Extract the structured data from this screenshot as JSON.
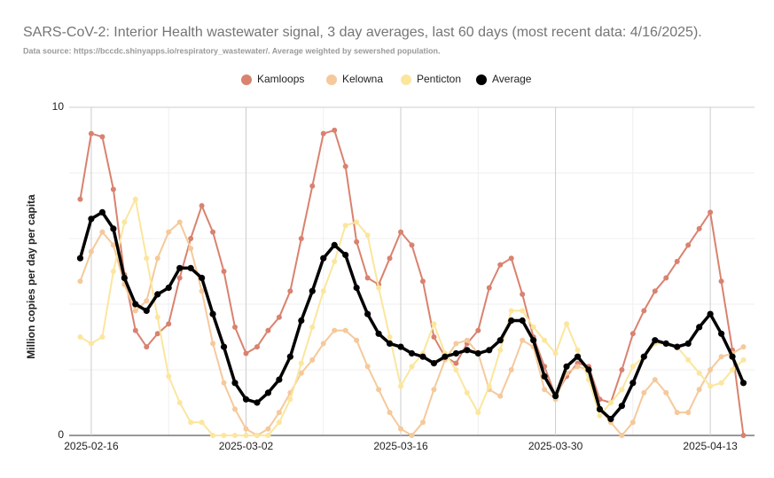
{
  "chart_data": {
    "type": "line",
    "title": "SARS-CoV-2: Interior Health wastewater signal, 3 day averages, last 60 days (most recent data: 4/16/2025).",
    "subtitle": "Data source: https://bccdc.shinyapps.io/respiratory_wastewater/. Average weighted by sewershed population.",
    "ylabel": "Million copies per day per capita",
    "legend": "top",
    "grid": true,
    "ylim": [
      0,
      10
    ],
    "yticks": [
      0,
      10
    ],
    "y_minor_ticks": [
      2,
      4,
      6,
      8
    ],
    "xlim": [
      "2025-02-14",
      "2025-04-17"
    ],
    "xticks": [
      "2025-02-16",
      "2025-03-02",
      "2025-03-16",
      "2025-03-30",
      "2025-04-13"
    ],
    "x_minor_ticks": [
      "2025-02-23",
      "2025-03-09",
      "2025-03-23",
      "2025-04-06"
    ],
    "x": [
      "2025-02-15",
      "2025-02-16",
      "2025-02-17",
      "2025-02-18",
      "2025-02-19",
      "2025-02-20",
      "2025-02-21",
      "2025-02-22",
      "2025-02-23",
      "2025-02-24",
      "2025-02-25",
      "2025-02-26",
      "2025-02-27",
      "2025-02-28",
      "2025-03-01",
      "2025-03-02",
      "2025-03-03",
      "2025-03-04",
      "2025-03-05",
      "2025-03-06",
      "2025-03-07",
      "2025-03-08",
      "2025-03-09",
      "2025-03-10",
      "2025-03-11",
      "2025-03-12",
      "2025-03-13",
      "2025-03-14",
      "2025-03-15",
      "2025-03-16",
      "2025-03-17",
      "2025-03-18",
      "2025-03-19",
      "2025-03-20",
      "2025-03-21",
      "2025-03-22",
      "2025-03-23",
      "2025-03-24",
      "2025-03-25",
      "2025-03-26",
      "2025-03-27",
      "2025-03-28",
      "2025-03-29",
      "2025-03-30",
      "2025-03-31",
      "2025-04-01",
      "2025-04-02",
      "2025-04-03",
      "2025-04-04",
      "2025-04-05",
      "2025-04-06",
      "2025-04-07",
      "2025-04-08",
      "2025-04-09",
      "2025-04-10",
      "2025-04-11",
      "2025-04-12",
      "2025-04-13",
      "2025-04-14",
      "2025-04-15",
      "2025-04-16"
    ],
    "series": [
      {
        "name": "Kamloops",
        "color": "#d9826f",
        "values": [
          7.2,
          9.2,
          9.1,
          7.5,
          4.9,
          3.2,
          2.7,
          3.1,
          3.4,
          4.8,
          6.0,
          7.0,
          6.2,
          5.0,
          3.3,
          2.5,
          2.7,
          3.2,
          3.6,
          4.4,
          6.0,
          7.6,
          9.2,
          9.3,
          8.2,
          5.9,
          4.8,
          4.6,
          5.4,
          6.2,
          5.8,
          4.7,
          3.0,
          2.4,
          2.2,
          2.8,
          3.2,
          4.5,
          5.2,
          5.4,
          4.3,
          3.0,
          2.1,
          1.2,
          1.8,
          2.2,
          2.1,
          1.1,
          1.0,
          2.0,
          3.1,
          3.8,
          4.4,
          4.8,
          5.3,
          5.8,
          6.3,
          6.8,
          4.7,
          2.6,
          0
        ]
      },
      {
        "name": "Kelowna",
        "color": "#f5c99b",
        "values": [
          4.7,
          5.6,
          6.2,
          5.8,
          4.6,
          3.8,
          4.1,
          5.4,
          6.2,
          6.5,
          5.7,
          4.4,
          2.8,
          1.6,
          0.8,
          0.2,
          0,
          0.2,
          0.7,
          1.3,
          1.9,
          2.3,
          2.8,
          3.2,
          3.2,
          2.9,
          2.1,
          1.4,
          0.7,
          0.2,
          0,
          0.4,
          1.4,
          2.3,
          2.8,
          2.9,
          2.5,
          1.4,
          1.2,
          2.0,
          2.9,
          2.7,
          1.4,
          1.1,
          1.9,
          2.1,
          2.0,
          0.8,
          0.4,
          0,
          0.4,
          1.3,
          1.7,
          1.3,
          0.7,
          0.7,
          1.4,
          2.0,
          2.4,
          2.5,
          2.7
        ]
      },
      {
        "name": "Penticton",
        "color": "#fbe69d",
        "values": [
          3.0,
          2.8,
          3.0,
          5.0,
          6.5,
          7.2,
          5.4,
          3.6,
          1.8,
          1.0,
          0.4,
          0.4,
          0,
          0,
          0,
          0,
          0,
          0,
          0.4,
          1.1,
          2.2,
          3.3,
          4.4,
          5.3,
          6.4,
          6.5,
          6.1,
          4.5,
          3.0,
          1.5,
          2.1,
          2.5,
          3.4,
          2.5,
          2.0,
          1.3,
          0.7,
          1.5,
          2.6,
          3.8,
          3.8,
          3.3,
          2.9,
          2.5,
          3.4,
          2.6,
          1.7,
          0.6,
          1.0,
          1.4,
          2.1,
          2.4,
          2.8,
          2.8,
          2.7,
          2.3,
          1.9,
          1.5,
          1.6,
          2.0,
          2.3
        ]
      },
      {
        "name": "Average",
        "color": "#000000",
        "values": [
          5.4,
          6.6,
          6.8,
          6.3,
          4.8,
          4.0,
          3.8,
          4.3,
          4.5,
          5.1,
          5.1,
          4.8,
          3.7,
          2.7,
          1.6,
          1.1,
          1.0,
          1.3,
          1.7,
          2.4,
          3.5,
          4.4,
          5.4,
          5.8,
          5.5,
          4.5,
          3.7,
          3.1,
          2.8,
          2.7,
          2.5,
          2.4,
          2.2,
          2.4,
          2.5,
          2.6,
          2.5,
          2.6,
          2.9,
          3.5,
          3.5,
          2.9,
          1.8,
          1.2,
          2.1,
          2.4,
          2.0,
          0.8,
          0.5,
          0.9,
          1.6,
          2.4,
          2.9,
          2.8,
          2.7,
          2.8,
          3.3,
          3.7,
          3.1,
          2.4,
          1.6
        ]
      }
    ]
  }
}
